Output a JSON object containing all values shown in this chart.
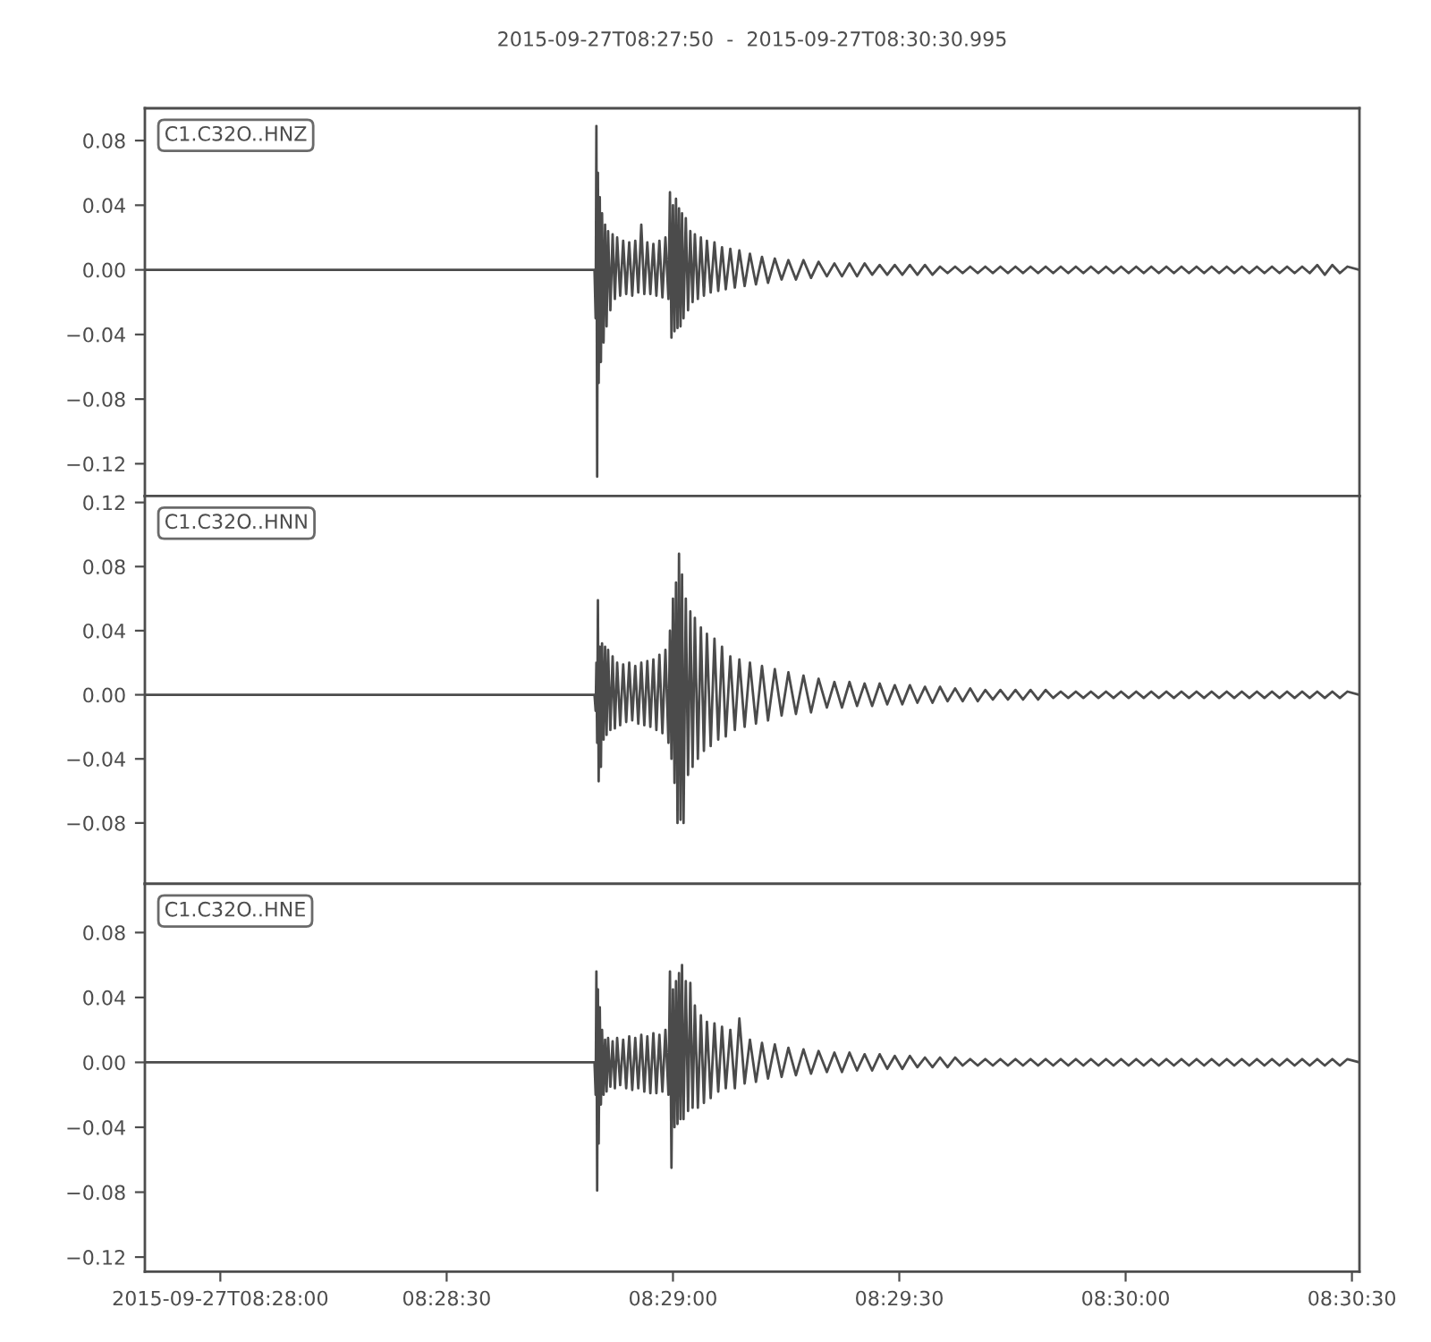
{
  "chart_data": [
    {
      "type": "line",
      "title": "2015-09-27T08:27:50  -  2015-09-27T08:30:30.995",
      "annotations": [
        "C1.C32O..HNZ"
      ],
      "x": [
        "2015-09-27T08:27:50",
        "2015-09-27T08:28:49.6",
        "2015-09-27T08:28:49.75",
        "2015-09-27T08:28:49.85",
        "2015-09-27T08:28:49.95",
        "2015-09-27T08:28:50.05",
        "2015-09-27T08:28:50.15",
        "2015-09-27T08:28:50.3",
        "2015-09-27T08:28:50.45",
        "2015-09-27T08:28:50.6",
        "2015-09-27T08:28:50.8",
        "2015-09-27T08:28:51",
        "2015-09-27T08:28:51.2",
        "2015-09-27T08:28:51.4",
        "2015-09-27T08:28:51.7",
        "2015-09-27T08:28:52",
        "2015-09-27T08:28:52.3",
        "2015-09-27T08:28:52.6",
        "2015-09-27T08:28:53",
        "2015-09-27T08:28:53.4",
        "2015-09-27T08:28:53.8",
        "2015-09-27T08:28:54.2",
        "2015-09-27T08:28:54.6",
        "2015-09-27T08:28:55",
        "2015-09-27T08:28:55.4",
        "2015-09-27T08:28:55.8",
        "2015-09-27T08:28:56.2",
        "2015-09-27T08:28:56.6",
        "2015-09-27T08:28:57",
        "2015-09-27T08:28:57.4",
        "2015-09-27T08:28:57.8",
        "2015-09-27T08:28:58.2",
        "2015-09-27T08:28:58.6",
        "2015-09-27T08:28:59",
        "2015-09-27T08:28:59.4",
        "2015-09-27T08:28:59.6",
        "2015-09-27T08:28:59.8",
        "2015-09-27T08:29:00",
        "2015-09-27T08:29:00.2",
        "2015-09-27T08:29:00.4",
        "2015-09-27T08:29:00.6",
        "2015-09-27T08:29:00.8",
        "2015-09-27T08:29:01",
        "2015-09-27T08:29:01.2",
        "2015-09-27T08:29:01.4",
        "2015-09-27T08:29:01.7",
        "2015-09-27T08:29:02",
        "2015-09-27T08:29:02.3",
        "2015-09-27T08:29:02.6",
        "2015-09-27T08:29:02.9",
        "2015-09-27T08:29:03.3",
        "2015-09-27T08:29:03.7",
        "2015-09-27T08:29:04.1",
        "2015-09-27T08:29:04.5",
        "2015-09-27T08:29:05",
        "2015-09-27T08:29:05.5",
        "2015-09-27T08:29:06",
        "2015-09-27T08:29:06.5",
        "2015-09-27T08:29:07",
        "2015-09-27T08:29:07.6",
        "2015-09-27T08:29:08.2",
        "2015-09-27T08:29:08.8",
        "2015-09-27T08:29:09.5",
        "2015-09-27T08:29:10.2",
        "2015-09-27T08:29:11",
        "2015-09-27T08:29:11.8",
        "2015-09-27T08:29:12.6",
        "2015-09-27T08:29:13.5",
        "2015-09-27T08:29:14.4",
        "2015-09-27T08:29:15.3",
        "2015-09-27T08:29:16.3",
        "2015-09-27T08:29:17.3",
        "2015-09-27T08:29:18.3",
        "2015-09-27T08:29:19.3",
        "2015-09-27T08:29:20.4",
        "2015-09-27T08:29:21.4",
        "2015-09-27T08:29:22.4",
        "2015-09-27T08:29:23.4",
        "2015-09-27T08:29:24.4",
        "2015-09-27T08:29:25.4",
        "2015-09-27T08:29:26.4",
        "2015-09-27T08:29:27.4",
        "2015-09-27T08:29:28.4",
        "2015-09-27T08:29:29.4",
        "2015-09-27T08:29:30.4",
        "2015-09-27T08:29:31.4",
        "2015-09-27T08:29:32.4",
        "2015-09-27T08:29:33.4",
        "2015-09-27T08:29:34.4",
        "2015-09-27T08:29:35.4",
        "2015-09-27T08:29:36.4",
        "2015-09-27T08:29:37.4",
        "2015-09-27T08:29:38.4",
        "2015-09-27T08:29:39.4",
        "2015-09-27T08:29:40.4",
        "2015-09-27T08:29:41.4",
        "2015-09-27T08:29:42.4",
        "2015-09-27T08:29:43.4",
        "2015-09-27T08:29:44.4",
        "2015-09-27T08:29:45.4",
        "2015-09-27T08:29:46.4",
        "2015-09-27T08:29:47.4",
        "2015-09-27T08:29:48.4",
        "2015-09-27T08:29:49.4",
        "2015-09-27T08:29:50.4",
        "2015-09-27T08:29:51.4",
        "2015-09-27T08:29:52.4",
        "2015-09-27T08:29:53.4",
        "2015-09-27T08:29:54.4",
        "2015-09-27T08:29:55.4",
        "2015-09-27T08:29:56.4",
        "2015-09-27T08:29:57.4",
        "2015-09-27T08:29:58.4",
        "2015-09-27T08:29:59.4",
        "2015-09-27T08:30:00.4",
        "2015-09-27T08:30:01.4",
        "2015-09-27T08:30:02.4",
        "2015-09-27T08:30:03.4",
        "2015-09-27T08:30:04.4",
        "2015-09-27T08:30:05.4",
        "2015-09-27T08:30:06.4",
        "2015-09-27T08:30:07.4",
        "2015-09-27T08:30:08.4",
        "2015-09-27T08:30:09.4",
        "2015-09-27T08:30:10.4",
        "2015-09-27T08:30:11.4",
        "2015-09-27T08:30:12.4",
        "2015-09-27T08:30:13.4",
        "2015-09-27T08:30:14.4",
        "2015-09-27T08:30:15.4",
        "2015-09-27T08:30:16.4",
        "2015-09-27T08:30:17.4",
        "2015-09-27T08:30:18.4",
        "2015-09-27T08:30:19.4",
        "2015-09-27T08:30:20.4",
        "2015-09-27T08:30:21.4",
        "2015-09-27T08:30:22.4",
        "2015-09-27T08:30:23.4",
        "2015-09-27T08:30:24.4",
        "2015-09-27T08:30:25.4",
        "2015-09-27T08:30:26.4",
        "2015-09-27T08:30:27.4",
        "2015-09-27T08:30:28.4",
        "2015-09-27T08:30:29.4",
        "2015-09-27T08:30:30.99"
      ],
      "series": [
        {
          "color": "#4b4b4b",
          "values": [
            0,
            0,
            -0.03,
            0.089,
            -0.128,
            0.06,
            -0.07,
            0.045,
            -0.057,
            0.035,
            -0.045,
            0.028,
            -0.035,
            0.024,
            -0.025,
            0.022,
            -0.018,
            0.02,
            -0.016,
            0.018,
            -0.015,
            0.017,
            -0.016,
            0.018,
            -0.014,
            0.028,
            -0.015,
            0.017,
            -0.015,
            0.016,
            -0.016,
            0.018,
            -0.017,
            0.02,
            -0.018,
            0.048,
            -0.042,
            0.04,
            -0.038,
            0.044,
            -0.036,
            0.038,
            -0.035,
            0.035,
            -0.03,
            0.032,
            -0.025,
            0.024,
            -0.02,
            0.022,
            -0.018,
            0.02,
            -0.016,
            0.018,
            -0.014,
            0.017,
            -0.013,
            0.014,
            -0.012,
            0.013,
            -0.011,
            0.012,
            -0.01,
            0.01,
            -0.009,
            0.008,
            -0.008,
            0.007,
            -0.006,
            0.006,
            -0.006,
            0.006,
            -0.005,
            0.005,
            -0.004,
            0.004,
            -0.004,
            0.004,
            -0.004,
            0.004,
            -0.003,
            0.003,
            -0.003,
            0.003,
            -0.003,
            0.003,
            -0.003,
            0.003,
            -0.003,
            0.002,
            -0.002,
            0.002,
            -0.002,
            0.002,
            -0.002,
            0.002,
            -0.002,
            0.002,
            -0.002,
            0.002,
            -0.002,
            0.002,
            -0.002,
            0.002,
            -0.002,
            0.002,
            -0.002,
            0.002,
            -0.002,
            0.002,
            -0.002,
            0.002,
            -0.002,
            0.002,
            -0.002,
            0.002,
            -0.002,
            0.002,
            -0.002,
            0.002,
            -0.002,
            0.002,
            -0.002,
            0.002,
            -0.002,
            0.002,
            -0.002,
            0.002,
            -0.002,
            0.002,
            -0.002,
            0.002,
            -0.002,
            0.002,
            -0.002,
            0.002,
            -0.002,
            0.002,
            -0.002,
            0.003,
            -0.003,
            0.003,
            -0.002,
            0.002,
            0
          ]
        }
      ],
      "xlim": [
        "2015-09-27T08:27:50",
        "2015-09-27T08:30:30.995"
      ],
      "ylim": [
        -0.14,
        0.1
      ],
      "yticks": [
        {
          "value": -0.12,
          "label": "−0.12"
        },
        {
          "value": -0.08,
          "label": "−0.08"
        },
        {
          "value": -0.04,
          "label": "−0.04"
        },
        {
          "value": 0,
          "label": "0.00"
        },
        0.04,
        0.08
      ],
      "tick_labels": "y"
    },
    {
      "type": "line",
      "annotations": [
        "C1.C32O..HNN"
      ],
      "x": [
        "2015-09-27T08:27:50",
        "2015-09-27T08:28:49.6",
        "2015-09-27T08:28:49.75",
        "2015-09-27T08:28:49.85",
        "2015-09-27T08:28:49.95",
        "2015-09-27T08:28:50.05",
        "2015-09-27T08:28:50.15",
        "2015-09-27T08:28:50.3",
        "2015-09-27T08:28:50.45",
        "2015-09-27T08:28:50.6",
        "2015-09-27T08:28:50.8",
        "2015-09-27T08:28:51",
        "2015-09-27T08:28:51.2",
        "2015-09-27T08:28:51.4",
        "2015-09-27T08:28:51.7",
        "2015-09-27T08:28:52",
        "2015-09-27T08:28:52.3",
        "2015-09-27T08:28:52.6",
        "2015-09-27T08:28:53",
        "2015-09-27T08:28:53.4",
        "2015-09-27T08:28:53.8",
        "2015-09-27T08:28:54.2",
        "2015-09-27T08:28:54.6",
        "2015-09-27T08:28:55",
        "2015-09-27T08:28:55.4",
        "2015-09-27T08:28:55.8",
        "2015-09-27T08:28:56.2",
        "2015-09-27T08:28:56.6",
        "2015-09-27T08:28:57",
        "2015-09-27T08:28:57.4",
        "2015-09-27T08:28:57.8",
        "2015-09-27T08:28:58.2",
        "2015-09-27T08:28:58.6",
        "2015-09-27T08:28:59",
        "2015-09-27T08:28:59.4",
        "2015-09-27T08:28:59.6",
        "2015-09-27T08:28:59.8",
        "2015-09-27T08:29:00",
        "2015-09-27T08:29:00.2",
        "2015-09-27T08:29:00.4",
        "2015-09-27T08:29:00.6",
        "2015-09-27T08:29:00.8",
        "2015-09-27T08:29:01",
        "2015-09-27T08:29:01.2",
        "2015-09-27T08:29:01.4",
        "2015-09-27T08:29:01.7",
        "2015-09-27T08:29:02",
        "2015-09-27T08:29:02.3",
        "2015-09-27T08:29:02.6",
        "2015-09-27T08:29:02.9",
        "2015-09-27T08:29:03.3",
        "2015-09-27T08:29:03.7",
        "2015-09-27T08:29:04.1",
        "2015-09-27T08:29:04.5",
        "2015-09-27T08:29:05",
        "2015-09-27T08:29:05.5",
        "2015-09-27T08:29:06",
        "2015-09-27T08:29:06.5",
        "2015-09-27T08:29:07",
        "2015-09-27T08:29:07.6",
        "2015-09-27T08:29:08.2",
        "2015-09-27T08:29:08.8",
        "2015-09-27T08:29:09.5",
        "2015-09-27T08:29:10.2",
        "2015-09-27T08:29:11",
        "2015-09-27T08:29:11.8",
        "2015-09-27T08:29:12.6",
        "2015-09-27T08:29:13.5",
        "2015-09-27T08:29:14.4",
        "2015-09-27T08:29:15.3",
        "2015-09-27T08:29:16.3",
        "2015-09-27T08:29:17.3",
        "2015-09-27T08:29:18.3",
        "2015-09-27T08:29:19.3",
        "2015-09-27T08:29:20.4",
        "2015-09-27T08:29:21.4",
        "2015-09-27T08:29:22.4",
        "2015-09-27T08:29:23.4",
        "2015-09-27T08:29:24.4",
        "2015-09-27T08:29:25.4",
        "2015-09-27T08:29:26.4",
        "2015-09-27T08:29:27.4",
        "2015-09-27T08:29:28.4",
        "2015-09-27T08:29:29.4",
        "2015-09-27T08:29:30.4",
        "2015-09-27T08:29:31.4",
        "2015-09-27T08:29:32.4",
        "2015-09-27T08:29:33.4",
        "2015-09-27T08:29:34.4",
        "2015-09-27T08:29:35.4",
        "2015-09-27T08:29:36.4",
        "2015-09-27T08:29:37.4",
        "2015-09-27T08:29:38.4",
        "2015-09-27T08:29:39.4",
        "2015-09-27T08:29:40.4",
        "2015-09-27T08:29:41.4",
        "2015-09-27T08:29:42.4",
        "2015-09-27T08:29:43.4",
        "2015-09-27T08:29:44.4",
        "2015-09-27T08:29:45.4",
        "2015-09-27T08:29:46.4",
        "2015-09-27T08:29:47.4",
        "2015-09-27T08:29:48.4",
        "2015-09-27T08:29:49.4",
        "2015-09-27T08:29:50.4",
        "2015-09-27T08:29:51.4",
        "2015-09-27T08:29:52.4",
        "2015-09-27T08:29:53.4",
        "2015-09-27T08:29:54.4",
        "2015-09-27T08:29:55.4",
        "2015-09-27T08:29:56.4",
        "2015-09-27T08:29:57.4",
        "2015-09-27T08:29:58.4",
        "2015-09-27T08:29:59.4",
        "2015-09-27T08:30:00.4",
        "2015-09-27T08:30:01.4",
        "2015-09-27T08:30:02.4",
        "2015-09-27T08:30:03.4",
        "2015-09-27T08:30:04.4",
        "2015-09-27T08:30:05.4",
        "2015-09-27T08:30:06.4",
        "2015-09-27T08:30:07.4",
        "2015-09-27T08:30:08.4",
        "2015-09-27T08:30:09.4",
        "2015-09-27T08:30:10.4",
        "2015-09-27T08:30:11.4",
        "2015-09-27T08:30:12.4",
        "2015-09-27T08:30:13.4",
        "2015-09-27T08:30:14.4",
        "2015-09-27T08:30:15.4",
        "2015-09-27T08:30:16.4",
        "2015-09-27T08:30:17.4",
        "2015-09-27T08:30:18.4",
        "2015-09-27T08:30:19.4",
        "2015-09-27T08:30:20.4",
        "2015-09-27T08:30:21.4",
        "2015-09-27T08:30:22.4",
        "2015-09-27T08:30:23.4",
        "2015-09-27T08:30:24.4",
        "2015-09-27T08:30:25.4",
        "2015-09-27T08:30:26.4",
        "2015-09-27T08:30:27.4",
        "2015-09-27T08:30:28.4",
        "2015-09-27T08:30:29.4",
        "2015-09-27T08:30:30.99"
      ],
      "series": [
        {
          "color": "#4b4b4b",
          "values": [
            0,
            0,
            -0.01,
            0.02,
            -0.03,
            0.059,
            -0.054,
            0.03,
            -0.045,
            0.032,
            -0.028,
            0.03,
            -0.025,
            0.028,
            -0.022,
            0.024,
            -0.021,
            0.02,
            -0.019,
            0.019,
            -0.017,
            0.02,
            -0.016,
            0.018,
            -0.018,
            0.02,
            -0.019,
            0.021,
            -0.02,
            0.022,
            -0.022,
            0.025,
            -0.024,
            0.028,
            -0.03,
            0.04,
            -0.04,
            0.06,
            -0.055,
            0.07,
            -0.08,
            0.088,
            -0.078,
            0.075,
            -0.08,
            0.06,
            -0.05,
            0.052,
            -0.045,
            0.048,
            -0.04,
            0.042,
            -0.035,
            0.038,
            -0.032,
            0.035,
            -0.028,
            0.03,
            -0.026,
            0.024,
            -0.022,
            0.022,
            -0.02,
            0.02,
            -0.018,
            0.018,
            -0.016,
            0.016,
            -0.013,
            0.014,
            -0.012,
            0.012,
            -0.011,
            0.01,
            -0.008,
            0.008,
            -0.008,
            0.008,
            -0.007,
            0.007,
            -0.007,
            0.007,
            -0.006,
            0.006,
            -0.006,
            0.006,
            -0.005,
            0.005,
            -0.005,
            0.005,
            -0.004,
            0.004,
            -0.004,
            0.004,
            -0.004,
            0.003,
            -0.003,
            0.003,
            -0.003,
            0.003,
            -0.003,
            0.003,
            -0.003,
            0.003,
            -0.002,
            0.002,
            -0.002,
            0.002,
            -0.002,
            0.002,
            -0.002,
            0.002,
            -0.002,
            0.002,
            -0.002,
            0.002,
            -0.002,
            0.002,
            -0.002,
            0.002,
            -0.002,
            0.002,
            -0.002,
            0.002,
            -0.002,
            0.002,
            -0.002,
            0.002,
            -0.002,
            0.002,
            -0.002,
            0.002,
            -0.002,
            0.002,
            -0.002,
            0.002,
            -0.002,
            0.002,
            -0.002,
            0.002,
            -0.002,
            0.002,
            -0.002,
            0.002,
            0
          ]
        }
      ],
      "xlim": [
        "2015-09-27T08:27:50",
        "2015-09-27T08:30:30.995"
      ],
      "ylim": [
        -0.118,
        0.124
      ],
      "yticks": [
        {
          "value": -0.08,
          "label": "−0.08"
        },
        {
          "value": -0.04,
          "label": "−0.04"
        },
        {
          "value": 0,
          "label": "0.00"
        },
        0.04,
        0.08,
        0.12
      ],
      "tick_labels": "y"
    },
    {
      "type": "line",
      "annotations": [
        "C1.C32O..HNE"
      ],
      "x": [
        "2015-09-27T08:27:50",
        "2015-09-27T08:28:49.6",
        "2015-09-27T08:28:49.75",
        "2015-09-27T08:28:49.85",
        "2015-09-27T08:28:49.95",
        "2015-09-27T08:28:50.05",
        "2015-09-27T08:28:50.15",
        "2015-09-27T08:28:50.3",
        "2015-09-27T08:28:50.45",
        "2015-09-27T08:28:50.6",
        "2015-09-27T08:28:50.8",
        "2015-09-27T08:28:51",
        "2015-09-27T08:28:51.2",
        "2015-09-27T08:28:51.4",
        "2015-09-27T08:28:51.7",
        "2015-09-27T08:28:52",
        "2015-09-27T08:28:52.3",
        "2015-09-27T08:28:52.6",
        "2015-09-27T08:28:53",
        "2015-09-27T08:28:53.4",
        "2015-09-27T08:28:53.8",
        "2015-09-27T08:28:54.2",
        "2015-09-27T08:28:54.6",
        "2015-09-27T08:28:55",
        "2015-09-27T08:28:55.4",
        "2015-09-27T08:28:55.8",
        "2015-09-27T08:28:56.2",
        "2015-09-27T08:28:56.6",
        "2015-09-27T08:28:57",
        "2015-09-27T08:28:57.4",
        "2015-09-27T08:28:57.8",
        "2015-09-27T08:28:58.2",
        "2015-09-27T08:28:58.6",
        "2015-09-27T08:28:59",
        "2015-09-27T08:28:59.4",
        "2015-09-27T08:28:59.6",
        "2015-09-27T08:28:59.8",
        "2015-09-27T08:29:00",
        "2015-09-27T08:29:00.2",
        "2015-09-27T08:29:00.4",
        "2015-09-27T08:29:00.6",
        "2015-09-27T08:29:00.8",
        "2015-09-27T08:29:01",
        "2015-09-27T08:29:01.2",
        "2015-09-27T08:29:01.4",
        "2015-09-27T08:29:01.7",
        "2015-09-27T08:29:02",
        "2015-09-27T08:29:02.3",
        "2015-09-27T08:29:02.6",
        "2015-09-27T08:29:02.9",
        "2015-09-27T08:29:03.3",
        "2015-09-27T08:29:03.7",
        "2015-09-27T08:29:04.1",
        "2015-09-27T08:29:04.5",
        "2015-09-27T08:29:05",
        "2015-09-27T08:29:05.5",
        "2015-09-27T08:29:06",
        "2015-09-27T08:29:06.5",
        "2015-09-27T08:29:07",
        "2015-09-27T08:29:07.6",
        "2015-09-27T08:29:08.2",
        "2015-09-27T08:29:08.8",
        "2015-09-27T08:29:09.5",
        "2015-09-27T08:29:10.2",
        "2015-09-27T08:29:11",
        "2015-09-27T08:29:11.8",
        "2015-09-27T08:29:12.6",
        "2015-09-27T08:29:13.5",
        "2015-09-27T08:29:14.4",
        "2015-09-27T08:29:15.3",
        "2015-09-27T08:29:16.3",
        "2015-09-27T08:29:17.3",
        "2015-09-27T08:29:18.3",
        "2015-09-27T08:29:19.3",
        "2015-09-27T08:29:20.4",
        "2015-09-27T08:29:21.4",
        "2015-09-27T08:29:22.4",
        "2015-09-27T08:29:23.4",
        "2015-09-27T08:29:24.4",
        "2015-09-27T08:29:25.4",
        "2015-09-27T08:29:26.4",
        "2015-09-27T08:29:27.4",
        "2015-09-27T08:29:28.4",
        "2015-09-27T08:29:29.4",
        "2015-09-27T08:29:30.4",
        "2015-09-27T08:29:31.4",
        "2015-09-27T08:29:32.4",
        "2015-09-27T08:29:33.4",
        "2015-09-27T08:29:34.4",
        "2015-09-27T08:29:35.4",
        "2015-09-27T08:29:36.4",
        "2015-09-27T08:29:37.4",
        "2015-09-27T08:29:38.4",
        "2015-09-27T08:29:39.4",
        "2015-09-27T08:29:40.4",
        "2015-09-27T08:29:41.4",
        "2015-09-27T08:29:42.4",
        "2015-09-27T08:29:43.4",
        "2015-09-27T08:29:44.4",
        "2015-09-27T08:29:45.4",
        "2015-09-27T08:29:46.4",
        "2015-09-27T08:29:47.4",
        "2015-09-27T08:29:48.4",
        "2015-09-27T08:29:49.4",
        "2015-09-27T08:29:50.4",
        "2015-09-27T08:29:51.4",
        "2015-09-27T08:29:52.4",
        "2015-09-27T08:29:53.4",
        "2015-09-27T08:29:54.4",
        "2015-09-27T08:29:55.4",
        "2015-09-27T08:29:56.4",
        "2015-09-27T08:29:57.4",
        "2015-09-27T08:29:58.4",
        "2015-09-27T08:29:59.4",
        "2015-09-27T08:30:00.4",
        "2015-09-27T08:30:01.4",
        "2015-09-27T08:30:02.4",
        "2015-09-27T08:30:03.4",
        "2015-09-27T08:30:04.4",
        "2015-09-27T08:30:05.4",
        "2015-09-27T08:30:06.4",
        "2015-09-27T08:30:07.4",
        "2015-09-27T08:30:08.4",
        "2015-09-27T08:30:09.4",
        "2015-09-27T08:30:10.4",
        "2015-09-27T08:30:11.4",
        "2015-09-27T08:30:12.4",
        "2015-09-27T08:30:13.4",
        "2015-09-27T08:30:14.4",
        "2015-09-27T08:30:15.4",
        "2015-09-27T08:30:16.4",
        "2015-09-27T08:30:17.4",
        "2015-09-27T08:30:18.4",
        "2015-09-27T08:30:19.4",
        "2015-09-27T08:30:20.4",
        "2015-09-27T08:30:21.4",
        "2015-09-27T08:30:22.4",
        "2015-09-27T08:30:23.4",
        "2015-09-27T08:30:24.4",
        "2015-09-27T08:30:25.4",
        "2015-09-27T08:30:26.4",
        "2015-09-27T08:30:27.4",
        "2015-09-27T08:30:28.4",
        "2015-09-27T08:30:29.4",
        "2015-09-27T08:30:30.99"
      ],
      "series": [
        {
          "color": "#4b4b4b",
          "values": [
            0,
            0,
            -0.02,
            0.056,
            -0.079,
            0.045,
            -0.05,
            0.034,
            -0.026,
            0.02,
            -0.02,
            0.014,
            -0.018,
            0.015,
            -0.015,
            0.013,
            -0.016,
            0.015,
            -0.014,
            0.014,
            -0.016,
            0.016,
            -0.017,
            0.015,
            -0.016,
            0.017,
            -0.018,
            0.016,
            -0.019,
            0.018,
            -0.019,
            0.017,
            -0.018,
            0.02,
            -0.02,
            0.056,
            -0.065,
            0.045,
            -0.04,
            0.05,
            -0.038,
            0.055,
            -0.035,
            0.06,
            -0.035,
            0.05,
            -0.03,
            0.049,
            -0.028,
            0.035,
            -0.028,
            0.029,
            -0.025,
            0.025,
            -0.022,
            0.024,
            -0.018,
            0.022,
            -0.016,
            0.02,
            -0.016,
            0.027,
            -0.013,
            0.014,
            -0.012,
            0.012,
            -0.01,
            0.011,
            -0.009,
            0.009,
            -0.008,
            0.008,
            -0.007,
            0.007,
            -0.006,
            0.006,
            -0.006,
            0.006,
            -0.005,
            0.005,
            -0.005,
            0.005,
            -0.004,
            0.004,
            -0.004,
            0.004,
            -0.003,
            0.003,
            -0.003,
            0.003,
            -0.003,
            0.003,
            -0.002,
            0.002,
            -0.002,
            0.002,
            -0.002,
            0.002,
            -0.002,
            0.002,
            -0.002,
            0.002,
            -0.002,
            0.002,
            -0.002,
            0.002,
            -0.002,
            0.002,
            -0.002,
            0.002,
            -0.002,
            0.002,
            -0.002,
            0.002,
            -0.002,
            0.002,
            -0.002,
            0.002,
            -0.002,
            0.002,
            -0.002,
            0.002,
            -0.002,
            0.002,
            -0.002,
            0.002,
            -0.002,
            0.002,
            -0.002,
            0.002,
            -0.002,
            0.002,
            -0.002,
            0.002,
            -0.002,
            0.002,
            -0.002,
            0.002,
            -0.002,
            0.002,
            -0.002,
            0.002,
            -0.002,
            0.002,
            0
          ]
        }
      ],
      "xlim": [
        "2015-09-27T08:27:50",
        "2015-09-27T08:30:30.995"
      ],
      "ylim": [
        -0.129,
        0.11
      ],
      "xticks": [
        {
          "value": "2015-09-27T08:28:00",
          "label": "2015-09-27T08:28:00"
        },
        {
          "value": "2015-09-27T08:28:30",
          "label": "08:28:30"
        },
        {
          "value": "2015-09-27T08:29:00",
          "label": "08:29:00"
        },
        {
          "value": "2015-09-27T08:29:30",
          "label": "08:29:30"
        },
        {
          "value": "2015-09-27T08:30:00",
          "label": "08:30:00"
        },
        {
          "value": "2015-09-27T08:30:30",
          "label": "08:30:30"
        }
      ],
      "yticks": [
        {
          "value": -0.12,
          "label": "−0.12"
        },
        {
          "value": -0.08,
          "label": "−0.08"
        },
        {
          "value": -0.04,
          "label": "−0.04"
        },
        {
          "value": 0,
          "label": "0.00"
        },
        0.04,
        0.08
      ]
    }
  ]
}
